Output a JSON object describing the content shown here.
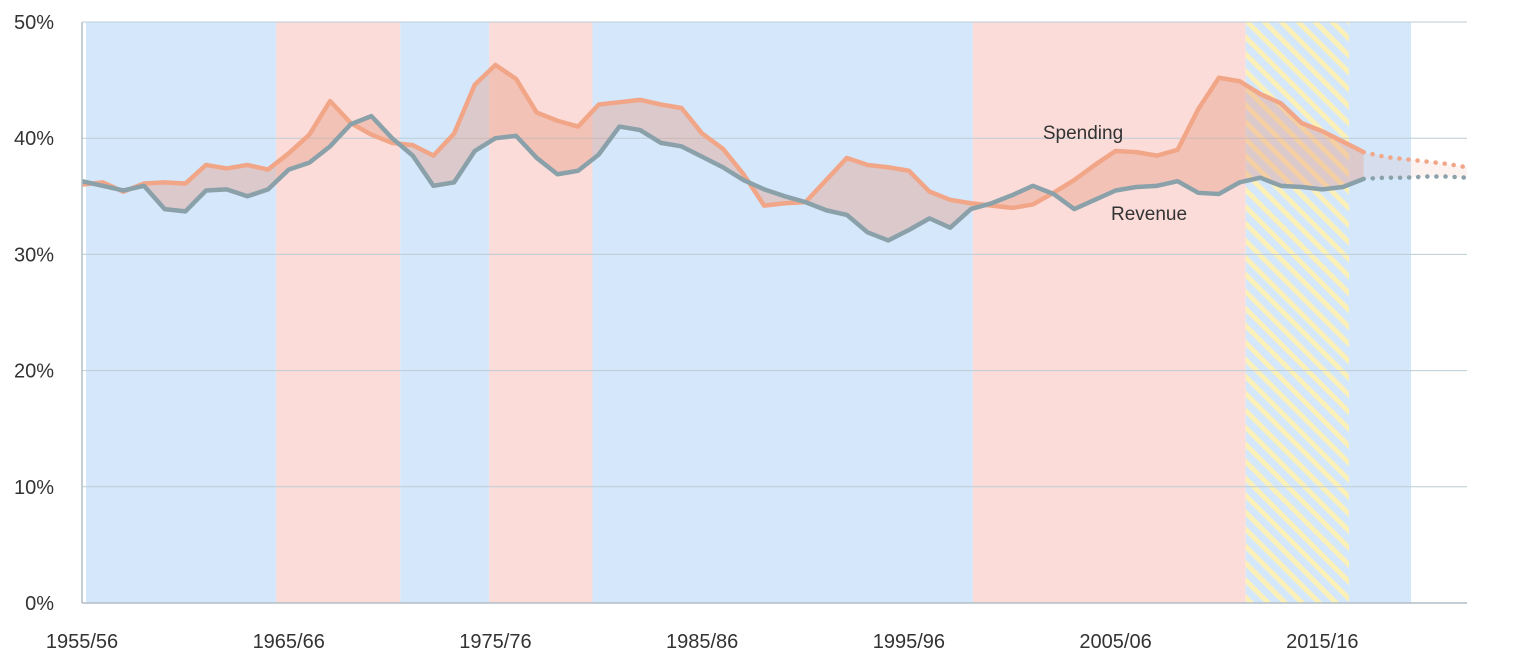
{
  "chart_data": {
    "type": "line",
    "title": "",
    "xlabel": "",
    "ylabel": "",
    "x_ticks": [
      "1955/56",
      "1965/66",
      "1975/76",
      "1985/86",
      "1995/96",
      "2005/06",
      "2015/16"
    ],
    "x_tick_years": [
      1955,
      1965,
      1975,
      1985,
      1995,
      2005,
      2015
    ],
    "xlim": [
      1955,
      2022
    ],
    "y_ticks": [
      "0%",
      "10%",
      "20%",
      "30%",
      "40%",
      "50%"
    ],
    "y_tick_values": [
      0,
      10,
      20,
      30,
      40,
      50
    ],
    "ylim": [
      0,
      50
    ],
    "y_unit": "%",
    "grid": true,
    "x": [
      1955,
      1956,
      1957,
      1958,
      1959,
      1960,
      1961,
      1962,
      1963,
      1964,
      1965,
      1966,
      1967,
      1968,
      1969,
      1970,
      1971,
      1972,
      1973,
      1974,
      1975,
      1976,
      1977,
      1978,
      1979,
      1980,
      1981,
      1982,
      1983,
      1984,
      1985,
      1986,
      1987,
      1988,
      1989,
      1990,
      1991,
      1992,
      1993,
      1994,
      1995,
      1996,
      1997,
      1998,
      1999,
      2000,
      2001,
      2002,
      2003,
      2004,
      2005,
      2006,
      2007,
      2008,
      2009,
      2010,
      2011,
      2012,
      2013,
      2014,
      2015,
      2016,
      2017,
      2018,
      2019,
      2020,
      2021,
      2022
    ],
    "series": [
      {
        "name": "Spending",
        "color": "#f2a688",
        "values": [
          36.0,
          36.2,
          35.4,
          36.1,
          36.2,
          36.1,
          37.7,
          37.4,
          37.7,
          37.3,
          38.7,
          40.3,
          43.2,
          41.3,
          40.3,
          39.6,
          39.4,
          38.5,
          40.4,
          44.6,
          46.3,
          45.1,
          42.2,
          41.5,
          41.0,
          42.9,
          43.1,
          43.3,
          42.9,
          42.6,
          40.4,
          39.1,
          36.9,
          34.2,
          34.4,
          34.5,
          36.4,
          38.3,
          37.7,
          37.5,
          37.2,
          35.4,
          34.7,
          34.4,
          34.2,
          34.0,
          34.3,
          35.3,
          36.4,
          37.7,
          38.9,
          38.8,
          38.5,
          39.0,
          42.5,
          45.2,
          44.9,
          43.8,
          43.0,
          41.3,
          40.6,
          39.7,
          38.8,
          38.4,
          38.2,
          38.0,
          37.8,
          37.5
        ],
        "projected_from": 2017
      },
      {
        "name": "Revenue",
        "color": "#8aa1aa",
        "values": [
          36.3,
          35.9,
          35.5,
          35.9,
          33.9,
          33.7,
          35.5,
          35.6,
          35.0,
          35.6,
          37.3,
          37.9,
          39.3,
          41.2,
          41.9,
          40.0,
          38.5,
          35.9,
          36.2,
          38.9,
          40.0,
          40.2,
          38.3,
          36.9,
          37.2,
          38.6,
          41.0,
          40.7,
          39.6,
          39.3,
          38.4,
          37.5,
          36.4,
          35.6,
          35.0,
          34.5,
          33.8,
          33.4,
          31.9,
          31.2,
          32.1,
          33.1,
          32.3,
          33.9,
          34.4,
          35.1,
          35.9,
          35.2,
          33.9,
          34.7,
          35.5,
          35.8,
          35.9,
          36.3,
          35.3,
          35.2,
          36.2,
          36.6,
          35.9,
          35.8,
          35.6,
          35.8,
          36.5,
          36.6,
          36.6,
          36.7,
          36.7,
          36.6
        ],
        "projected_from": 2017
      }
    ],
    "background_bands": [
      {
        "from": 1955,
        "to": 1964.2,
        "color": "#d4e7fb",
        "hatched": false
      },
      {
        "from": 1964.2,
        "to": 1970.2,
        "color": "#fbdcd9",
        "hatched": false
      },
      {
        "from": 1970.2,
        "to": 1974.5,
        "color": "#d4e7fb",
        "hatched": false
      },
      {
        "from": 1974.5,
        "to": 1979.5,
        "color": "#fbdcd9",
        "hatched": false
      },
      {
        "from": 1979.5,
        "to": 1997.9,
        "color": "#d4e7fb",
        "hatched": false
      },
      {
        "from": 1997.9,
        "to": 2011.1,
        "color": "#fbdcd9",
        "hatched": false
      },
      {
        "from": 2011.1,
        "to": 2016.1,
        "color": "#d4e7fb",
        "hatched": true,
        "hatch_color": "#fbf0b8"
      },
      {
        "from": 2016.1,
        "to": 2019.1,
        "color": "#d4e7fb",
        "hatched": false
      }
    ],
    "colors": {
      "gap_fill": "#e89880",
      "grid": "#bccdd6",
      "axis": "#b0bec5"
    }
  }
}
